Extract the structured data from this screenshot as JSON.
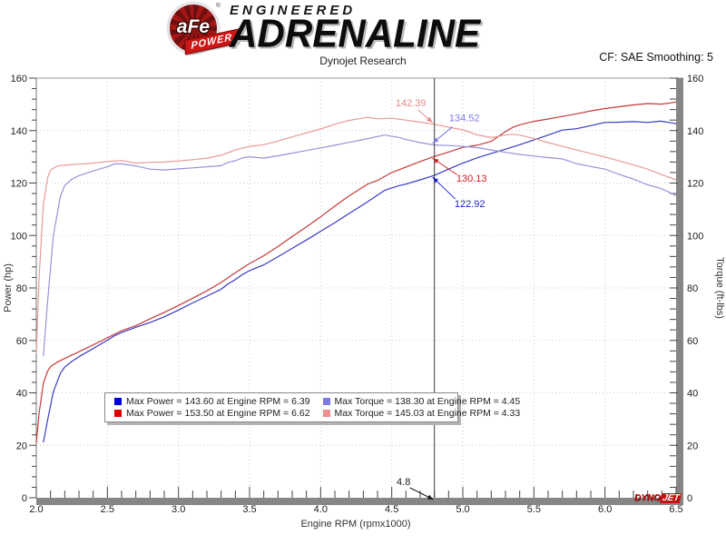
{
  "header": {
    "logo_main": "aFe",
    "logo_reg": "®",
    "logo_sub": "POWER",
    "brand_line1": "ENGINEERED",
    "brand_line2": "ADRENALINE",
    "subtitle": "Dynojet Research",
    "cf_text": "CF: SAE Smoothing: 5"
  },
  "watermark": {
    "part1": "DYNO",
    "part2": "JET"
  },
  "legend": {
    "entries": [
      {
        "color": "#0000d6",
        "text": "Max Power = 143.60 at Engine RPM = 6.39"
      },
      {
        "color": "#dd0000",
        "text": "Max Power = 153.50 at Engine RPM = 6.62"
      },
      {
        "color": "#7b7be0",
        "text": "Max Torque = 138.30 at Engine RPM = 4.45"
      },
      {
        "color": "#ef8f8f",
        "text": "Max Torque = 145.03 at Engine RPM = 4.33"
      }
    ]
  },
  "chart_data": {
    "type": "line",
    "title": "Dynojet Research",
    "xlabel": "Engine RPM (rpmx1000)",
    "ylabel_left": "Power (hp)",
    "ylabel_right": "Torque (ft-lbs)",
    "xlim": [
      2.0,
      6.5
    ],
    "ylim": [
      0,
      160
    ],
    "x_major_ticks": [
      "2.0",
      "2.5",
      "3.0",
      "3.5",
      "4.0",
      "4.5",
      "5.0",
      "5.5",
      "6.0",
      "6.5"
    ],
    "x_minor_step": 0.1,
    "y_major_ticks": [
      0,
      20,
      40,
      60,
      80,
      100,
      120,
      140,
      160
    ],
    "y_minor_step": 4,
    "grid": "dotted",
    "legend_position": "bottom-center",
    "cursor": {
      "x": 4.8,
      "label": "4.8"
    },
    "annotations": [
      {
        "text": "142.39",
        "x": 4.8,
        "y": 142.39,
        "color": "#e88a8a"
      },
      {
        "text": "134.52",
        "x": 4.8,
        "y": 134.52,
        "color": "#7b7be0"
      },
      {
        "text": "130.13",
        "x": 4.8,
        "y": 130.13,
        "color": "#cc2222"
      },
      {
        "text": "122.92",
        "x": 4.8,
        "y": 122.92,
        "color": "#2222cc"
      }
    ],
    "series": [
      {
        "name": "power_stock",
        "label": "Max Power = 143.60 at Engine RPM = 6.39",
        "color": "#3a3ac4",
        "points": [
          [
            2.05,
            21.1
          ],
          [
            2.08,
            29.7
          ],
          [
            2.12,
            40.4
          ],
          [
            2.17,
            47.5
          ],
          [
            2.2,
            49.8
          ],
          [
            2.25,
            52.0
          ],
          [
            2.3,
            53.8
          ],
          [
            2.4,
            56.9
          ],
          [
            2.5,
            60.1
          ],
          [
            2.55,
            61.8
          ],
          [
            2.6,
            63.0
          ],
          [
            2.7,
            65.0
          ],
          [
            2.8,
            66.8
          ],
          [
            2.9,
            69.0
          ],
          [
            3.0,
            71.6
          ],
          [
            3.1,
            74.3
          ],
          [
            3.2,
            76.9
          ],
          [
            3.3,
            79.5
          ],
          [
            3.35,
            81.6
          ],
          [
            3.4,
            83.2
          ],
          [
            3.45,
            85.1
          ],
          [
            3.5,
            86.6
          ],
          [
            3.6,
            88.8
          ],
          [
            3.7,
            91.9
          ],
          [
            3.8,
            95.1
          ],
          [
            3.9,
            98.3
          ],
          [
            4.0,
            101.6
          ],
          [
            4.1,
            104.9
          ],
          [
            4.2,
            108.4
          ],
          [
            4.3,
            111.8
          ],
          [
            4.45,
            117.2
          ],
          [
            4.55,
            119.0
          ],
          [
            4.6,
            119.6
          ],
          [
            4.7,
            121.2
          ],
          [
            4.8,
            122.92
          ],
          [
            4.9,
            125.3
          ],
          [
            5.0,
            127.6
          ],
          [
            5.1,
            129.6
          ],
          [
            5.2,
            131.3
          ],
          [
            5.3,
            132.9
          ],
          [
            5.4,
            134.6
          ],
          [
            5.5,
            136.4
          ],
          [
            5.6,
            138.3
          ],
          [
            5.7,
            140.2
          ],
          [
            5.8,
            140.7
          ],
          [
            5.9,
            141.9
          ],
          [
            6.0,
            143.1
          ],
          [
            6.1,
            143.2
          ],
          [
            6.2,
            143.4
          ],
          [
            6.3,
            143.1
          ],
          [
            6.39,
            143.6
          ],
          [
            6.45,
            143.1
          ],
          [
            6.5,
            142.6
          ]
        ]
      },
      {
        "name": "power_tuned",
        "label": "Max Power = 153.50 at Engine RPM = 6.62",
        "color": "#c43a3a",
        "points": [
          [
            2.0,
            20.9
          ],
          [
            2.02,
            32.3
          ],
          [
            2.05,
            43.7
          ],
          [
            2.08,
            48.3
          ],
          [
            2.1,
            50.0
          ],
          [
            2.15,
            51.8
          ],
          [
            2.2,
            53.1
          ],
          [
            2.3,
            55.7
          ],
          [
            2.4,
            58.3
          ],
          [
            2.5,
            61.0
          ],
          [
            2.6,
            63.7
          ],
          [
            2.7,
            65.6
          ],
          [
            2.8,
            68.2
          ],
          [
            2.9,
            70.7
          ],
          [
            3.0,
            73.3
          ],
          [
            3.1,
            76.1
          ],
          [
            3.2,
            78.9
          ],
          [
            3.3,
            82.1
          ],
          [
            3.4,
            85.8
          ],
          [
            3.5,
            89.3
          ],
          [
            3.6,
            92.3
          ],
          [
            3.7,
            95.8
          ],
          [
            3.8,
            99.6
          ],
          [
            3.9,
            103.3
          ],
          [
            4.0,
            107.1
          ],
          [
            4.1,
            111.2
          ],
          [
            4.2,
            115.1
          ],
          [
            4.33,
            119.6
          ],
          [
            4.4,
            121.0
          ],
          [
            4.5,
            124.0
          ],
          [
            4.6,
            126.1
          ],
          [
            4.7,
            128.2
          ],
          [
            4.8,
            130.13
          ],
          [
            4.9,
            131.8
          ],
          [
            5.0,
            133.6
          ],
          [
            5.05,
            134.0
          ],
          [
            5.1,
            134.4
          ],
          [
            5.2,
            135.9
          ],
          [
            5.3,
            139.6
          ],
          [
            5.35,
            141.2
          ],
          [
            5.4,
            142.2
          ],
          [
            5.5,
            143.5
          ],
          [
            5.6,
            144.4
          ],
          [
            5.7,
            145.4
          ],
          [
            5.8,
            146.4
          ],
          [
            5.9,
            147.5
          ],
          [
            6.0,
            148.4
          ],
          [
            6.1,
            149.1
          ],
          [
            6.2,
            149.8
          ],
          [
            6.3,
            150.3
          ],
          [
            6.4,
            150.1
          ],
          [
            6.5,
            150.9
          ]
        ]
      },
      {
        "name": "torque_stock",
        "label": "Max Torque = 138.30 at Engine RPM = 4.45",
        "color": "#9494da",
        "points": [
          [
            2.05,
            54.0
          ],
          [
            2.08,
            75.0
          ],
          [
            2.12,
            100.0
          ],
          [
            2.17,
            115.0
          ],
          [
            2.2,
            119.0
          ],
          [
            2.25,
            121.5
          ],
          [
            2.3,
            122.8
          ],
          [
            2.4,
            124.6
          ],
          [
            2.5,
            126.2
          ],
          [
            2.55,
            127.3
          ],
          [
            2.6,
            127.3
          ],
          [
            2.7,
            126.5
          ],
          [
            2.8,
            125.3
          ],
          [
            2.9,
            125.0
          ],
          [
            3.0,
            125.4
          ],
          [
            3.1,
            125.8
          ],
          [
            3.2,
            126.2
          ],
          [
            3.3,
            126.6
          ],
          [
            3.35,
            127.9
          ],
          [
            3.4,
            128.5
          ],
          [
            3.45,
            129.6
          ],
          [
            3.5,
            130.0
          ],
          [
            3.6,
            129.5
          ],
          [
            3.7,
            130.4
          ],
          [
            3.8,
            131.4
          ],
          [
            3.9,
            132.4
          ],
          [
            4.0,
            133.4
          ],
          [
            4.1,
            134.4
          ],
          [
            4.2,
            135.5
          ],
          [
            4.3,
            136.6
          ],
          [
            4.45,
            138.3
          ],
          [
            4.55,
            137.4
          ],
          [
            4.6,
            136.6
          ],
          [
            4.7,
            135.4
          ],
          [
            4.8,
            134.52
          ],
          [
            4.9,
            134.3
          ],
          [
            5.0,
            134.0
          ],
          [
            5.1,
            133.5
          ],
          [
            5.2,
            132.6
          ],
          [
            5.3,
            131.7
          ],
          [
            5.4,
            130.9
          ],
          [
            5.5,
            130.3
          ],
          [
            5.6,
            129.7
          ],
          [
            5.7,
            129.2
          ],
          [
            5.8,
            127.4
          ],
          [
            5.9,
            126.3
          ],
          [
            6.0,
            125.3
          ],
          [
            6.1,
            123.3
          ],
          [
            6.2,
            121.5
          ],
          [
            6.3,
            119.3
          ],
          [
            6.39,
            118.0
          ],
          [
            6.45,
            116.5
          ],
          [
            6.5,
            115.2
          ]
        ]
      },
      {
        "name": "torque_tuned",
        "label": "Max Torque = 145.03 at Engine RPM = 4.33",
        "color": "#e89a9a",
        "points": [
          [
            2.0,
            55.0
          ],
          [
            2.02,
            84.0
          ],
          [
            2.05,
            112.0
          ],
          [
            2.08,
            122.0
          ],
          [
            2.1,
            125.0
          ],
          [
            2.15,
            126.5
          ],
          [
            2.2,
            126.8
          ],
          [
            2.3,
            127.2
          ],
          [
            2.4,
            127.6
          ],
          [
            2.5,
            128.2
          ],
          [
            2.6,
            128.6
          ],
          [
            2.7,
            127.6
          ],
          [
            2.8,
            127.9
          ],
          [
            2.9,
            128.0
          ],
          [
            3.0,
            128.4
          ],
          [
            3.1,
            128.9
          ],
          [
            3.2,
            129.5
          ],
          [
            3.3,
            130.6
          ],
          [
            3.4,
            132.6
          ],
          [
            3.5,
            134.0
          ],
          [
            3.6,
            134.6
          ],
          [
            3.7,
            136.0
          ],
          [
            3.8,
            137.6
          ],
          [
            3.9,
            139.1
          ],
          [
            4.0,
            140.6
          ],
          [
            4.1,
            142.4
          ],
          [
            4.2,
            143.9
          ],
          [
            4.33,
            145.03
          ],
          [
            4.4,
            144.5
          ],
          [
            4.5,
            144.7
          ],
          [
            4.6,
            144.0
          ],
          [
            4.7,
            143.2
          ],
          [
            4.8,
            142.39
          ],
          [
            4.9,
            141.3
          ],
          [
            5.0,
            140.3
          ],
          [
            5.05,
            139.4
          ],
          [
            5.1,
            138.4
          ],
          [
            5.2,
            137.3
          ],
          [
            5.3,
            138.3
          ],
          [
            5.35,
            138.6
          ],
          [
            5.4,
            138.3
          ],
          [
            5.5,
            137.0
          ],
          [
            5.6,
            135.4
          ],
          [
            5.7,
            134.0
          ],
          [
            5.8,
            132.6
          ],
          [
            5.9,
            131.3
          ],
          [
            6.0,
            129.9
          ],
          [
            6.1,
            128.4
          ],
          [
            6.2,
            126.9
          ],
          [
            6.3,
            125.3
          ],
          [
            6.4,
            123.2
          ],
          [
            6.5,
            121.2
          ]
        ]
      }
    ]
  }
}
